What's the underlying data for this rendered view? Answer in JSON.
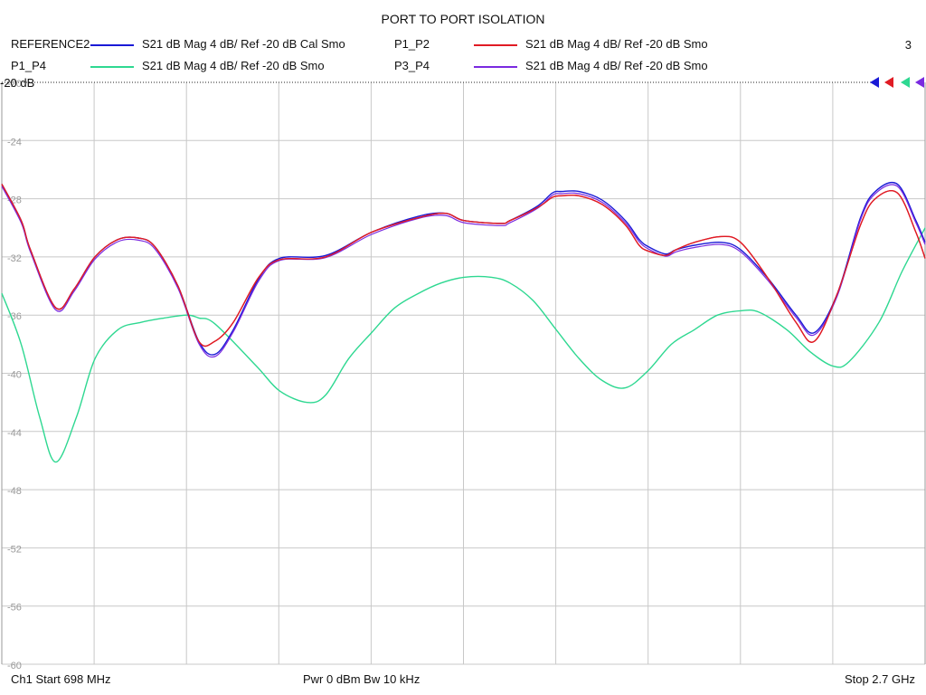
{
  "chart_data": {
    "type": "line",
    "title": "PORT TO PORT ISOLATION",
    "channel_number": "3",
    "reference_label": "-20 dB",
    "reference_value": -20,
    "ylim": [
      -60,
      -20
    ],
    "yticks": [
      -20,
      -24,
      -28,
      -32,
      -36,
      -40,
      -44,
      -48,
      -52,
      -56,
      -60
    ],
    "ytick_labels": [
      "-20",
      "-24",
      "-28",
      "-32",
      "-36",
      "-40",
      "-44",
      "-48",
      "-52",
      "-56",
      "-60"
    ],
    "xlim": [
      698,
      2700
    ],
    "x_divisions": 10,
    "grid": true,
    "legend": [
      {
        "name": "REFERENCE2",
        "desc": "S21  dB Mag  4 dB/ Ref -20 dB  Cal Smo",
        "color": "#1a1ad6"
      },
      {
        "name": "P1_P2",
        "desc": "S21  dB Mag  4 dB/ Ref -20 dB  Smo",
        "color": "#e01b24"
      },
      {
        "name": "P1_P4",
        "desc": "S21  dB Mag  4 dB/ Ref -20 dB  Smo",
        "color": "#2ed891"
      },
      {
        "name": "P3_P4",
        "desc": "S21  dB Mag  4 dB/ Ref -20 dB  Smo",
        "color": "#7a2ae0"
      }
    ],
    "series": [
      {
        "name": "REFERENCE2",
        "color": "#1a1ad6",
        "x": [
          698,
          740,
          760,
          815,
          855,
          900,
          950,
          994,
          1030,
          1080,
          1125,
          1160,
          1200,
          1255,
          1300,
          1400,
          1500,
          1602,
          1660,
          1700,
          1780,
          1800,
          1860,
          1892,
          1912,
          1950,
          2000,
          2050,
          2080,
          2100,
          2137,
          2160,
          2200,
          2258,
          2300,
          2360,
          2420,
          2460,
          2510,
          2560,
          2592,
          2640,
          2680,
          2700
        ],
        "y": [
          -27.0,
          -29.5,
          -31.5,
          -35.5,
          -34.2,
          -32.0,
          -30.8,
          -30.7,
          -31.3,
          -34.0,
          -37.8,
          -38.7,
          -37.0,
          -33.5,
          -32.1,
          -31.9,
          -30.3,
          -29.2,
          -29.0,
          -29.5,
          -29.7,
          -29.5,
          -28.5,
          -27.6,
          -27.5,
          -27.5,
          -28.1,
          -29.5,
          -30.8,
          -31.3,
          -31.8,
          -31.5,
          -31.2,
          -31.0,
          -31.5,
          -33.5,
          -36.0,
          -37.2,
          -34.5,
          -29.3,
          -27.5,
          -27.0,
          -29.5,
          -31.0
        ]
      },
      {
        "name": "P1_P2",
        "color": "#e01b24",
        "x": [
          698,
          740,
          760,
          815,
          855,
          900,
          950,
          994,
          1030,
          1080,
          1125,
          1160,
          1200,
          1255,
          1300,
          1400,
          1500,
          1602,
          1660,
          1700,
          1780,
          1800,
          1860,
          1892,
          1912,
          1950,
          2000,
          2050,
          2080,
          2100,
          2137,
          2160,
          2200,
          2258,
          2300,
          2360,
          2420,
          2460,
          2510,
          2560,
          2592,
          2640,
          2680,
          2700
        ],
        "y": [
          -27.0,
          -29.5,
          -31.5,
          -35.5,
          -34.2,
          -32.0,
          -30.8,
          -30.7,
          -31.3,
          -34.0,
          -37.8,
          -37.8,
          -36.5,
          -33.4,
          -32.2,
          -32.0,
          -30.3,
          -29.3,
          -29.0,
          -29.5,
          -29.7,
          -29.5,
          -28.6,
          -27.9,
          -27.8,
          -27.8,
          -28.4,
          -29.8,
          -31.2,
          -31.6,
          -31.9,
          -31.5,
          -31.0,
          -30.6,
          -31.0,
          -33.5,
          -36.5,
          -37.8,
          -34.5,
          -29.8,
          -28.0,
          -27.6,
          -30.3,
          -32.1
        ]
      },
      {
        "name": "P1_P4",
        "color": "#2ed891",
        "x": [
          698,
          740,
          780,
          815,
          860,
          900,
          950,
          1000,
          1050,
          1100,
          1125,
          1160,
          1250,
          1300,
          1360,
          1400,
          1450,
          1500,
          1550,
          1602,
          1650,
          1700,
          1760,
          1800,
          1850,
          1900,
          1950,
          2000,
          2050,
          2100,
          2150,
          2200,
          2250,
          2300,
          2340,
          2400,
          2450,
          2500,
          2535,
          2600,
          2650,
          2700
        ],
        "y": [
          -34.5,
          -38.0,
          -43.0,
          -46.1,
          -43.0,
          -39.0,
          -37.0,
          -36.5,
          -36.2,
          -36.0,
          -36.2,
          -36.6,
          -39.5,
          -41.2,
          -42.0,
          -41.5,
          -39.0,
          -37.2,
          -35.5,
          -34.5,
          -33.8,
          -33.4,
          -33.4,
          -33.8,
          -35.0,
          -37.0,
          -39.0,
          -40.5,
          -41.0,
          -39.8,
          -38.0,
          -37.0,
          -36.0,
          -35.7,
          -35.8,
          -37.0,
          -38.5,
          -39.5,
          -39.2,
          -36.5,
          -33.0,
          -30.0
        ]
      }
    ],
    "footer": {
      "start": "Ch1  Start  698 MHz",
      "center": "Pwr  0 dBm  Bw  10 kHz",
      "stop": "Stop  2.7 GHz"
    }
  }
}
